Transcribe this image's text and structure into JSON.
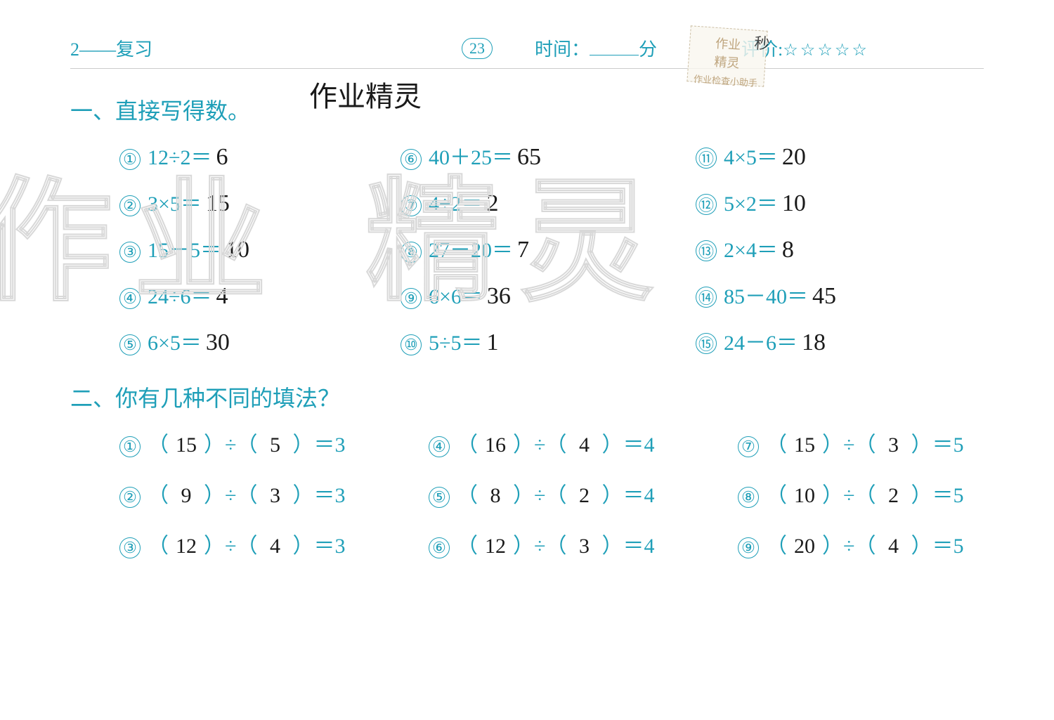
{
  "header": {
    "lesson_label": "2——复习",
    "page_number": "23",
    "time_label": "时间：",
    "time_unit": "分",
    "rating_label": "评价:",
    "stars": "☆☆☆☆☆",
    "stamp_line1": "作业",
    "stamp_line2": "精灵",
    "stamp_small": "作业检查小助手",
    "stamp_sec": "秒"
  },
  "handwritten_header": "作业精灵",
  "watermark_1": "作业",
  "watermark_2": "精灵",
  "section1": {
    "title": "一、直接写得数。",
    "problems": [
      {
        "n": "①",
        "expr": "12÷2＝",
        "ans": "6"
      },
      {
        "n": "⑥",
        "expr": "40＋25＝",
        "ans": "65"
      },
      {
        "n": "⑪",
        "expr": "4×5＝",
        "ans": "20"
      },
      {
        "n": "②",
        "expr": "3×5＝",
        "ans": "15"
      },
      {
        "n": "⑦",
        "expr": "4÷2＝",
        "ans": "2"
      },
      {
        "n": "⑫",
        "expr": "5×2＝",
        "ans": "10"
      },
      {
        "n": "③",
        "expr": "15－5＝",
        "ans": "10"
      },
      {
        "n": "⑧",
        "expr": "27－20＝",
        "ans": "7"
      },
      {
        "n": "⑬",
        "expr": "2×4＝",
        "ans": "8"
      },
      {
        "n": "④",
        "expr": "24÷6＝",
        "ans": "4"
      },
      {
        "n": "⑨",
        "expr": "6×6＝",
        "ans": "36"
      },
      {
        "n": "⑭",
        "expr": "85－40＝",
        "ans": "45"
      },
      {
        "n": "⑤",
        "expr": "6×5＝",
        "ans": "30"
      },
      {
        "n": "⑩",
        "expr": "5÷5＝",
        "ans": "1"
      },
      {
        "n": "⑮",
        "expr": "24－6＝",
        "ans": "18"
      }
    ]
  },
  "section2": {
    "title": "二、你有几种不同的填法？",
    "problems": [
      {
        "n": "①",
        "a": "15",
        "b": "5",
        "r": "3"
      },
      {
        "n": "④",
        "a": "16",
        "b": "4",
        "r": "4"
      },
      {
        "n": "⑦",
        "a": "15",
        "b": "3",
        "r": "5"
      },
      {
        "n": "②",
        "a": "9",
        "b": "3",
        "r": "3"
      },
      {
        "n": "⑤",
        "a": "8",
        "b": "2",
        "r": "4"
      },
      {
        "n": "⑧",
        "a": "10",
        "b": "2",
        "r": "5"
      },
      {
        "n": "③",
        "a": "12",
        "b": "4",
        "r": "3"
      },
      {
        "n": "⑥",
        "a": "12",
        "b": "3",
        "r": "4"
      },
      {
        "n": "⑨",
        "a": "20",
        "b": "4",
        "r": "5"
      }
    ],
    "paren_open": "（",
    "paren_close": "）",
    "div": "÷",
    "eq": "＝"
  },
  "colors": {
    "printed": "#1f9fb8",
    "handwritten": "#1a1a1a",
    "background": "#ffffff",
    "watermark_stroke": "#d8d8d8",
    "stamp_border": "#c0b090",
    "stamp_text": "#b09060"
  }
}
